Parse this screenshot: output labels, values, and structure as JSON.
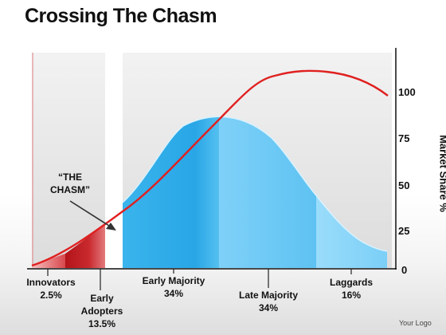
{
  "title": "Crossing The Chasm",
  "chasm": {
    "line1": "“THE",
    "line2": "CHASM”"
  },
  "segments": {
    "innovators": {
      "name": "Innovators",
      "pct": "2.5%"
    },
    "early_adopters": {
      "name1": "Early",
      "name2": "Adopters",
      "pct": "13.5%"
    },
    "early_majority": {
      "name": "Early Majority",
      "pct": "34%"
    },
    "late_majority": {
      "name": "Late Majority",
      "pct": "34%"
    },
    "laggards": {
      "name": "Laggards",
      "pct": "16%"
    }
  },
  "y_axis": {
    "label": "Market Share %",
    "ticks": [
      "100",
      "75",
      "50",
      "25",
      "0"
    ]
  },
  "logo": "Your Logo",
  "colors": {
    "curve": "#e02020",
    "bell_dark": "#2aa8e8",
    "bell_light": "#8ad6fa",
    "early_adopters": "#c0171c",
    "innovators": "#e06060"
  }
}
